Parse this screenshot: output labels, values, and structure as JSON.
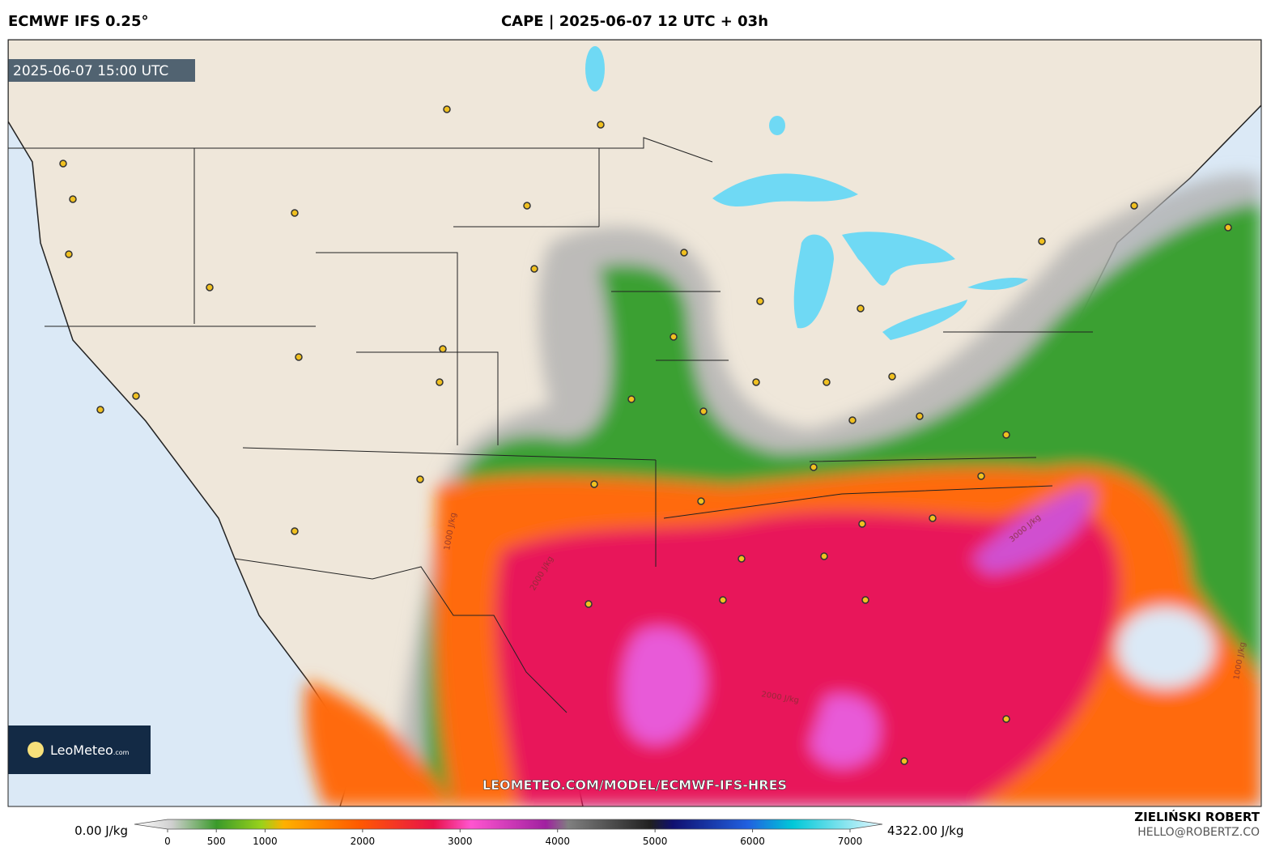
{
  "header": {
    "model": "ECMWF IFS 0.25°",
    "title": "CAPE | 2025-06-07 12 UTC + 03h"
  },
  "map": {
    "timestamp": "2025-06-07 15:00 UTC",
    "watermark": "LEOMETEO.COM/MODEL/ECMWF-IFS-HRES",
    "contour_labels": [
      "1000 J/kg",
      "2000 J/kg",
      "3000 J/kg",
      "2000 J/kg",
      "1000 J/kg"
    ]
  },
  "logo": {
    "brand": "LeoMeteo",
    "suffix": ".com"
  },
  "colorbar": {
    "min_label": "0.00 J/kg",
    "max_label": "4322.00 J/kg",
    "ticks": [
      0,
      500,
      1000,
      2000,
      3000,
      4000,
      5000,
      6000,
      7000
    ]
  },
  "footer": {
    "author": "ZIELIŃSKI ROBERT",
    "email": "HELLO@ROBERTZ.CO"
  }
}
